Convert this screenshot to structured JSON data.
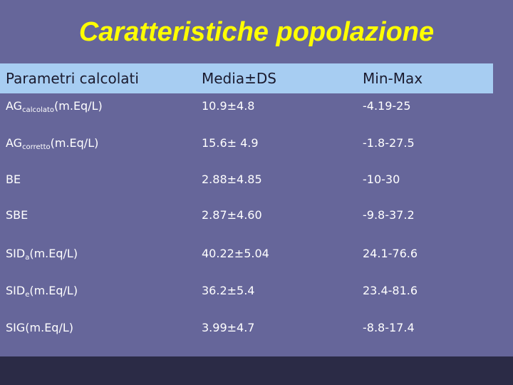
{
  "title": "Caratteristiche popolazione",
  "table": {
    "headers": [
      "Parametri calcolati",
      "Media±DS",
      "Min-Max"
    ],
    "rows": [
      {
        "param": "AG",
        "sub": "calcolato",
        "unit": "(m.Eq/L)",
        "mean": "10.9±4.8",
        "range": "-4.19-25"
      },
      {
        "param": "AG",
        "sub": "corretto",
        "unit": "(m.Eq/L)",
        "mean": "15.6± 4.9",
        "range": "-1.8-27.5"
      },
      {
        "param": "BE",
        "sub": "",
        "unit": "",
        "mean": "2.88±4.85",
        "range": "-10-30"
      },
      {
        "param": "SBE",
        "sub": "",
        "unit": "",
        "mean": "2.87±4.60",
        "range": "-9.8-37.2"
      },
      {
        "param": "SID",
        "sub": "a",
        "unit": "(m.Eq/L)",
        "mean": "40.22±5.04",
        "range": "24.1-76.6"
      },
      {
        "param": "SID",
        "sub": "e",
        "unit": "(m.Eq/L)",
        "mean": "36.2±5.4",
        "range": "23.4-81.6"
      },
      {
        "param": "SIG",
        "sub": "",
        "unit": "(m.Eq/L)",
        "mean": "3.99±4.7",
        "range": "-8.8-17.4"
      }
    ]
  }
}
